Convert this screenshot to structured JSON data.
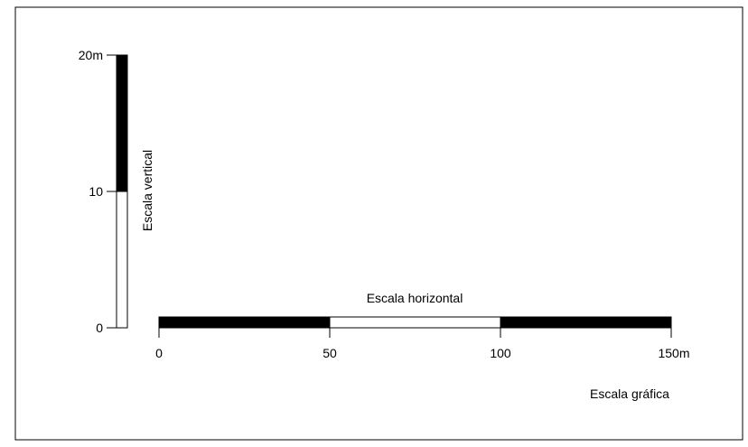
{
  "vertical_scale": {
    "title": "Escala vertical",
    "ticks": [
      "20m",
      "10",
      "0"
    ],
    "fill_color": "#000000"
  },
  "horizontal_scale": {
    "title": "Escala horizontal",
    "ticks": [
      "0",
      "50",
      "100",
      "150m"
    ],
    "segment_colors": [
      "#000000",
      "#ffffff",
      "#000000"
    ]
  },
  "caption": "Escala gráfica"
}
